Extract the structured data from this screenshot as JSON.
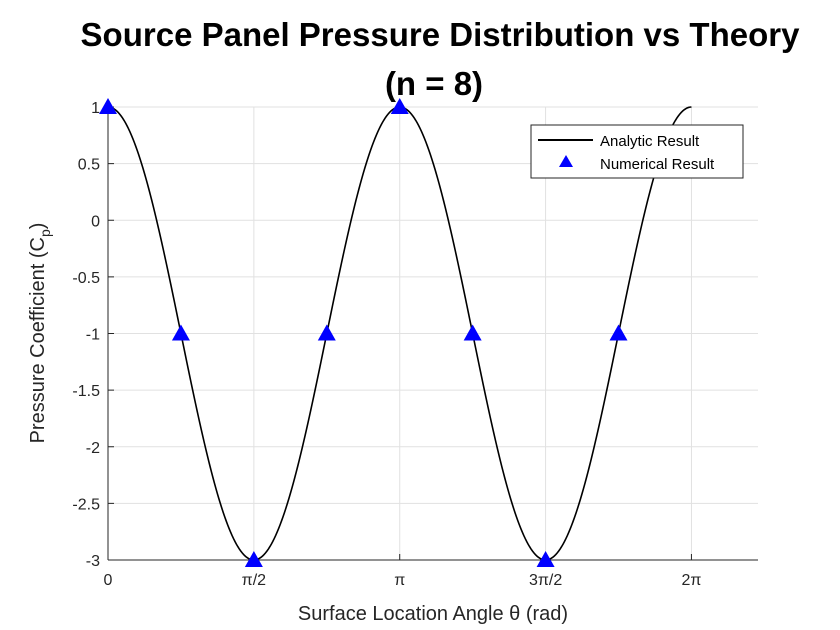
{
  "chart_data": {
    "type": "line",
    "title_line1": "Source Panel Pressure Distribution vs Theory",
    "title_line2": "(n = 8)",
    "xlabel": "Surface Location Angle θ (rad)",
    "ylabel_main": "Pressure Coefficient (C",
    "ylabel_sub": "p",
    "ylabel_close": ")",
    "xlim": [
      0,
      7.0
    ],
    "ylim": [
      -3,
      1
    ],
    "grid": true,
    "legend_position": "top-right",
    "x_ticks": [
      {
        "value": 0,
        "label": "0"
      },
      {
        "value": 1.5708,
        "label": "π/2"
      },
      {
        "value": 3.1416,
        "label": "π"
      },
      {
        "value": 4.7124,
        "label": "3π/2"
      },
      {
        "value": 6.2832,
        "label": "2π"
      }
    ],
    "y_ticks": [
      {
        "value": 1,
        "label": "1"
      },
      {
        "value": 0.5,
        "label": "0.5"
      },
      {
        "value": 0,
        "label": "0"
      },
      {
        "value": -0.5,
        "label": "-0.5"
      },
      {
        "value": -1,
        "label": "-1"
      },
      {
        "value": -1.5,
        "label": "-1.5"
      },
      {
        "value": -2,
        "label": "-2"
      },
      {
        "value": -2.5,
        "label": "-2.5"
      },
      {
        "value": -3,
        "label": "-3"
      }
    ],
    "series": [
      {
        "name": "Analytic Result",
        "kind": "line",
        "color": "#000000",
        "formula": "1 - 4*sin(theta)^2",
        "x_range": [
          0,
          6.2832
        ]
      },
      {
        "name": "Numerical Result",
        "kind": "marker",
        "marker": "triangle",
        "color": "#0000ff",
        "x": [
          0,
          0.7854,
          1.5708,
          2.3562,
          3.1416,
          3.927,
          4.7124,
          5.4978
        ],
        "y": [
          1,
          -1,
          -3,
          -1,
          1,
          -1,
          -3,
          -1
        ]
      }
    ]
  }
}
